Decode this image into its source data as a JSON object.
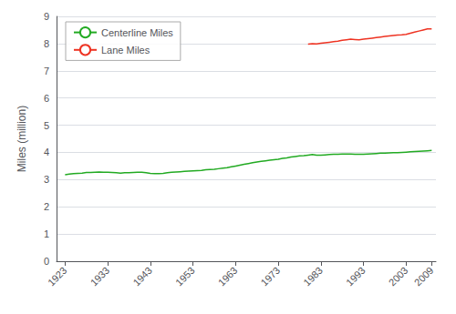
{
  "chart_data": {
    "type": "line",
    "ylabel": "Miles (million)",
    "xlim": [
      1921,
      2010
    ],
    "xticks": [
      1923,
      1933,
      1943,
      1953,
      1963,
      1973,
      1983,
      1993,
      2003,
      2009
    ],
    "ylim": [
      0,
      9
    ],
    "yticks": [
      0,
      1,
      2,
      3,
      4,
      5,
      6,
      7,
      8,
      9
    ],
    "grid": true,
    "legend": "upper left",
    "series": [
      {
        "name": "Centerline Miles",
        "color": "#22aa22",
        "x": [
          1923,
          1924,
          1925,
          1926,
          1927,
          1928,
          1929,
          1930,
          1931,
          1932,
          1933,
          1934,
          1935,
          1936,
          1937,
          1938,
          1939,
          1940,
          1941,
          1942,
          1943,
          1944,
          1945,
          1946,
          1947,
          1948,
          1949,
          1950,
          1951,
          1952,
          1953,
          1954,
          1955,
          1956,
          1957,
          1958,
          1959,
          1960,
          1961,
          1962,
          1963,
          1964,
          1965,
          1966,
          1967,
          1968,
          1969,
          1970,
          1971,
          1972,
          1973,
          1974,
          1975,
          1976,
          1977,
          1978,
          1979,
          1980,
          1981,
          1982,
          1983,
          1984,
          1985,
          1986,
          1987,
          1988,
          1989,
          1990,
          1991,
          1992,
          1993,
          1994,
          1995,
          1996,
          1997,
          1998,
          1999,
          2000,
          2001,
          2002,
          2003,
          2004,
          2005,
          2006,
          2007,
          2008,
          2009
        ],
        "values": [
          3.18,
          3.2,
          3.22,
          3.23,
          3.24,
          3.26,
          3.26,
          3.27,
          3.28,
          3.27,
          3.27,
          3.26,
          3.25,
          3.24,
          3.25,
          3.25,
          3.26,
          3.27,
          3.27,
          3.25,
          3.23,
          3.22,
          3.22,
          3.23,
          3.25,
          3.27,
          3.28,
          3.29,
          3.3,
          3.31,
          3.32,
          3.33,
          3.34,
          3.36,
          3.37,
          3.38,
          3.4,
          3.42,
          3.44,
          3.47,
          3.5,
          3.53,
          3.56,
          3.59,
          3.62,
          3.65,
          3.67,
          3.69,
          3.71,
          3.73,
          3.75,
          3.78,
          3.8,
          3.83,
          3.85,
          3.87,
          3.88,
          3.9,
          3.92,
          3.9,
          3.9,
          3.91,
          3.92,
          3.93,
          3.93,
          3.94,
          3.94,
          3.94,
          3.93,
          3.93,
          3.93,
          3.94,
          3.95,
          3.96,
          3.97,
          3.97,
          3.98,
          3.99,
          3.99,
          4.0,
          4.01,
          4.02,
          4.03,
          4.04,
          4.05,
          4.06,
          4.07
        ]
      },
      {
        "name": "Lane Miles",
        "color": "#ee3322",
        "x": [
          1980,
          1981,
          1982,
          1983,
          1984,
          1985,
          1986,
          1987,
          1988,
          1989,
          1990,
          1991,
          1992,
          1993,
          1994,
          1995,
          1996,
          1997,
          1998,
          1999,
          2000,
          2001,
          2002,
          2003,
          2004,
          2005,
          2006,
          2007,
          2008,
          2009
        ],
        "values": [
          7.98,
          8.0,
          7.99,
          8.01,
          8.03,
          8.05,
          8.07,
          8.09,
          8.12,
          8.14,
          8.16,
          8.15,
          8.14,
          8.16,
          8.18,
          8.2,
          8.22,
          8.24,
          8.26,
          8.28,
          8.3,
          8.31,
          8.32,
          8.34,
          8.38,
          8.42,
          8.46,
          8.5,
          8.54,
          8.54
        ]
      }
    ]
  }
}
